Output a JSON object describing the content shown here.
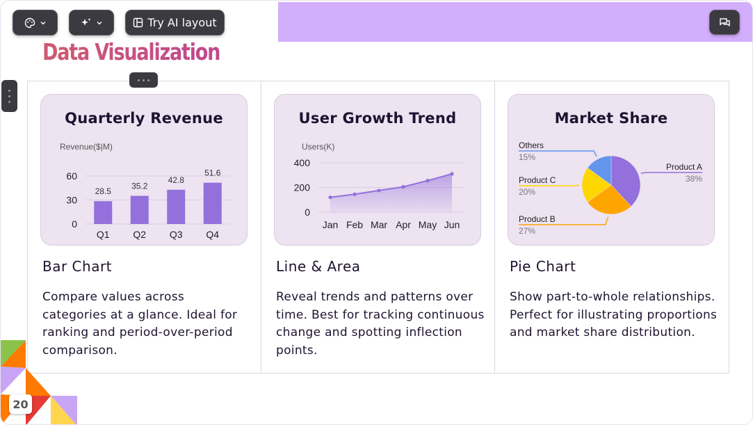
{
  "slide": {
    "title": "Data Visualization",
    "page_number": "20",
    "accent": "#d3aefd"
  },
  "toolbar": {
    "palette_icon": "palette-icon",
    "sparkle_icon": "sparkle-icon",
    "ai_layout_label": "Try AI layout",
    "comment_icon": "comment-icon"
  },
  "columns": [
    {
      "chart_title": "Quarterly Revenue",
      "heading": "Bar Chart",
      "description": "Compare values across categories at a glance. Ideal for ranking and period-over-period comparison."
    },
    {
      "chart_title": "User Growth Trend",
      "heading": "Line & Area",
      "description": "Reveal trends and patterns over time. Best for tracking continuous change and spotting inflection points."
    },
    {
      "chart_title": "Market Share",
      "heading": "Pie Chart",
      "description": "Show part-to-whole relationships. Perfect for illustrating proportions and market share distribution."
    }
  ],
  "chart_data": [
    {
      "type": "bar",
      "title": "Quarterly Revenue",
      "ylabel": "Revenue($|M)",
      "categories": [
        "Q1",
        "Q2",
        "Q3",
        "Q4"
      ],
      "values": [
        28.5,
        35.2,
        42.8,
        51.6
      ],
      "value_labels": [
        "28.5",
        "35.2",
        "42.8",
        "51.6"
      ],
      "yticks": [
        "60",
        "30",
        "0"
      ],
      "ylim": [
        0,
        60
      ],
      "color": "#9370db"
    },
    {
      "type": "area",
      "title": "User Growth Trend",
      "ylabel": "Users(K)",
      "categories": [
        "Jan",
        "Feb",
        "Mar",
        "Apr",
        "May",
        "Jun"
      ],
      "values": [
        120,
        145,
        175,
        205,
        255,
        310
      ],
      "yticks": [
        "400",
        "200",
        "0"
      ],
      "ylim": [
        0,
        400
      ],
      "color": "#9370db"
    },
    {
      "type": "pie",
      "title": "Market Share",
      "slices": [
        {
          "name": "Product A",
          "label": "38%",
          "value": 38,
          "color": "#9370db"
        },
        {
          "name": "Product B",
          "label": "27%",
          "value": 27,
          "color": "#ffa500"
        },
        {
          "name": "Product C",
          "label": "20%",
          "value": 20,
          "color": "#ffd700"
        },
        {
          "name": "Others",
          "label": "15%",
          "value": 15,
          "color": "#6495ed"
        }
      ]
    }
  ]
}
